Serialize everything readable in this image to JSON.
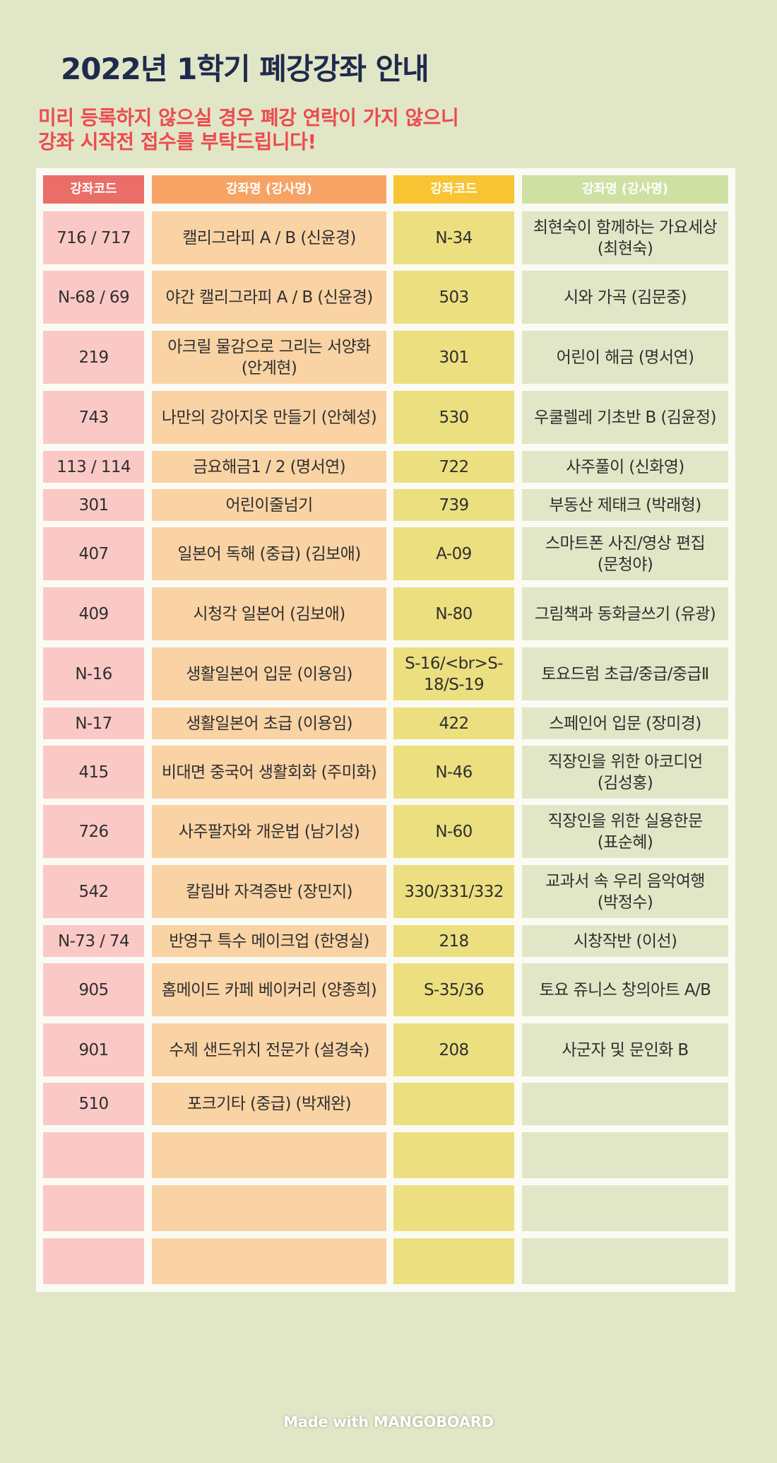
{
  "title": "2022년 1학기 폐강강좌 안내",
  "notice": {
    "line1": "미리 등록하지 않으실 경우 폐강 연락이 가지 않으니",
    "line2": "강좌 시작전 접수를 부탁드립니다!"
  },
  "table": {
    "headers": [
      "강좌코드",
      "강좌명 (강사명)",
      "강좌코드",
      "강좌명 (강사명)"
    ],
    "rows": [
      [
        "716 / 717",
        "캘리그라피 A / B (신윤경)",
        "N-34",
        "최현숙이 함께하는 가요세상 (최현숙)"
      ],
      [
        "N-68 / 69",
        "야간 캘리그라피 A / B (신윤경)",
        "503",
        "시와 가곡 (김문중)"
      ],
      [
        "219",
        "아크릴 물감으로 그리는 서양화 (안계현)",
        "301",
        "어린이 해금 (명서연)"
      ],
      [
        "743",
        "나만의 강아지옷 만들기 (안혜성)",
        "530",
        "우쿨렐레 기초반 B (김윤정)"
      ],
      [
        "113 / 114",
        "금요해금1 / 2 (명서연)",
        "722",
        "사주풀이 (신화영)"
      ],
      [
        "301",
        "어린이줄넘기",
        "739",
        "부동산 제태크 (박래형)"
      ],
      [
        "407",
        "일본어 독해 (중급) (김보애)",
        "A-09",
        "스마트폰 사진/영상 편집 (문청야)"
      ],
      [
        "409",
        "시청각 일본어 (김보애)",
        "N-80",
        "그림책과 동화글쓰기 (유광)"
      ],
      [
        "N-16",
        "생활일본어 입문 (이용임)",
        "S-16/<br>S-18/S-19",
        "토요드럼 초급/중급/중급Ⅱ"
      ],
      [
        "N-17",
        "생활일본어 초급 (이용임)",
        "422",
        "스페인어 입문 (장미경)"
      ],
      [
        "415",
        "비대면 중국어 생활회화 (주미화)",
        "N-46",
        "직장인을 위한 아코디언 (김성홍)"
      ],
      [
        "726",
        "사주팔자와 개운법 (남기성)",
        "N-60",
        "직장인을 위한 실용한문 (표순혜)"
      ],
      [
        "542",
        "칼림바 자격증반 (장민지)",
        "330/331/332",
        "교과서 속 우리 음악여행 (박정수)"
      ],
      [
        "N-73 / 74",
        "반영구 특수 메이크업 (한영실)",
        "218",
        "시창작반 (이선)"
      ],
      [
        "905",
        "홈메이드 카페 베이커리 (양종희)",
        "S-35/36",
        "토요 쥬니스 창의아트 A/B"
      ],
      [
        "901",
        "수제 샌드위치 전문가 (설경숙)",
        "208",
        "사군자 및 문인화 B"
      ],
      [
        "510",
        "포크기타 (중급) (박재완)",
        "",
        ""
      ],
      [
        "",
        "",
        "",
        ""
      ],
      [
        "",
        "",
        "",
        ""
      ],
      [
        "",
        "",
        "",
        ""
      ]
    ]
  },
  "footer": "Made with MANGOBOARD",
  "colors": {
    "background": "#e1e7c6",
    "title": "#1f2a4d",
    "notice": "#ec4b50",
    "header_col1": "#ea6d68",
    "header_col2": "#f6a365",
    "header_col3": "#f8c433",
    "header_col4": "#cfe0a3",
    "body_col1": "#fac9c5",
    "body_col2": "#f9d3a4",
    "body_col3": "#ecdf80",
    "body_col4": "#e1e7c6"
  }
}
